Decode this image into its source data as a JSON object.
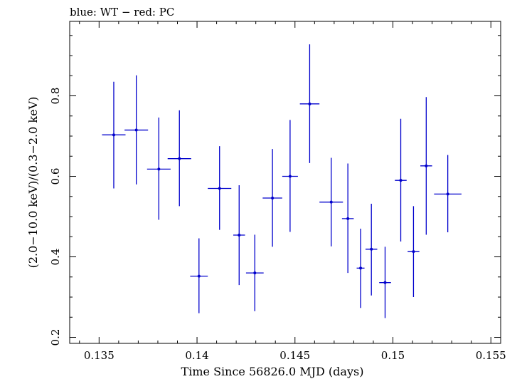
{
  "chart_data": {
    "type": "scatter",
    "title": "blue: WT − red: PC",
    "xlabel": "Time Since 56826.0 MJD (days)",
    "ylabel": "(2.0−10.0 keV)/(0.3−2.0 keV)",
    "xlim": [
      0.1335,
      0.1555
    ],
    "ylim": [
      0.185,
      0.985
    ],
    "x_ticks": [
      0.135,
      0.14,
      0.145,
      0.15,
      0.155
    ],
    "x_tick_labels": [
      "0.135",
      "0.14",
      "0.145",
      "0.15",
      "0.155"
    ],
    "y_ticks": [
      0.2,
      0.4,
      0.6,
      0.8
    ],
    "y_tick_labels": [
      "0.2",
      "0.4",
      "0.6",
      "0.8"
    ],
    "grid": false,
    "series": [
      {
        "color": "#0000cc",
        "points": [
          {
            "x": 0.13575,
            "xerr": 0.0006,
            "y": 0.703,
            "ylo": 0.57,
            "yhi": 0.835
          },
          {
            "x": 0.1369,
            "xerr": 0.0006,
            "y": 0.715,
            "ylo": 0.58,
            "yhi": 0.851
          },
          {
            "x": 0.13805,
            "xerr": 0.0006,
            "y": 0.618,
            "ylo": 0.492,
            "yhi": 0.746
          },
          {
            "x": 0.1391,
            "xerr": 0.0006,
            "y": 0.644,
            "ylo": 0.526,
            "yhi": 0.764
          },
          {
            "x": 0.1401,
            "xerr": 0.00045,
            "y": 0.352,
            "ylo": 0.26,
            "yhi": 0.446
          },
          {
            "x": 0.14115,
            "xerr": 0.0006,
            "y": 0.57,
            "ylo": 0.467,
            "yhi": 0.675
          },
          {
            "x": 0.14215,
            "xerr": 0.0003,
            "y": 0.454,
            "ylo": 0.33,
            "yhi": 0.578
          },
          {
            "x": 0.14295,
            "xerr": 0.00045,
            "y": 0.36,
            "ylo": 0.265,
            "yhi": 0.455
          },
          {
            "x": 0.14385,
            "xerr": 0.0005,
            "y": 0.546,
            "ylo": 0.425,
            "yhi": 0.668
          },
          {
            "x": 0.14475,
            "xerr": 0.0004,
            "y": 0.6,
            "ylo": 0.462,
            "yhi": 0.74
          },
          {
            "x": 0.14575,
            "xerr": 0.0005,
            "y": 0.78,
            "ylo": 0.633,
            "yhi": 0.928
          },
          {
            "x": 0.14685,
            "xerr": 0.0006,
            "y": 0.536,
            "ylo": 0.426,
            "yhi": 0.646
          },
          {
            "x": 0.1477,
            "xerr": 0.0003,
            "y": 0.495,
            "ylo": 0.36,
            "yhi": 0.632
          },
          {
            "x": 0.14835,
            "xerr": 0.0002,
            "y": 0.372,
            "ylo": 0.273,
            "yhi": 0.47
          },
          {
            "x": 0.1489,
            "xerr": 0.0003,
            "y": 0.419,
            "ylo": 0.304,
            "yhi": 0.532
          },
          {
            "x": 0.1496,
            "xerr": 0.0003,
            "y": 0.336,
            "ylo": 0.248,
            "yhi": 0.425
          },
          {
            "x": 0.1504,
            "xerr": 0.0003,
            "y": 0.59,
            "ylo": 0.438,
            "yhi": 0.743
          },
          {
            "x": 0.15105,
            "xerr": 0.0003,
            "y": 0.413,
            "ylo": 0.3,
            "yhi": 0.526
          },
          {
            "x": 0.1517,
            "xerr": 0.0003,
            "y": 0.626,
            "ylo": 0.455,
            "yhi": 0.797
          },
          {
            "x": 0.1528,
            "xerr": 0.0007,
            "y": 0.556,
            "ylo": 0.461,
            "yhi": 0.653
          }
        ]
      }
    ]
  }
}
